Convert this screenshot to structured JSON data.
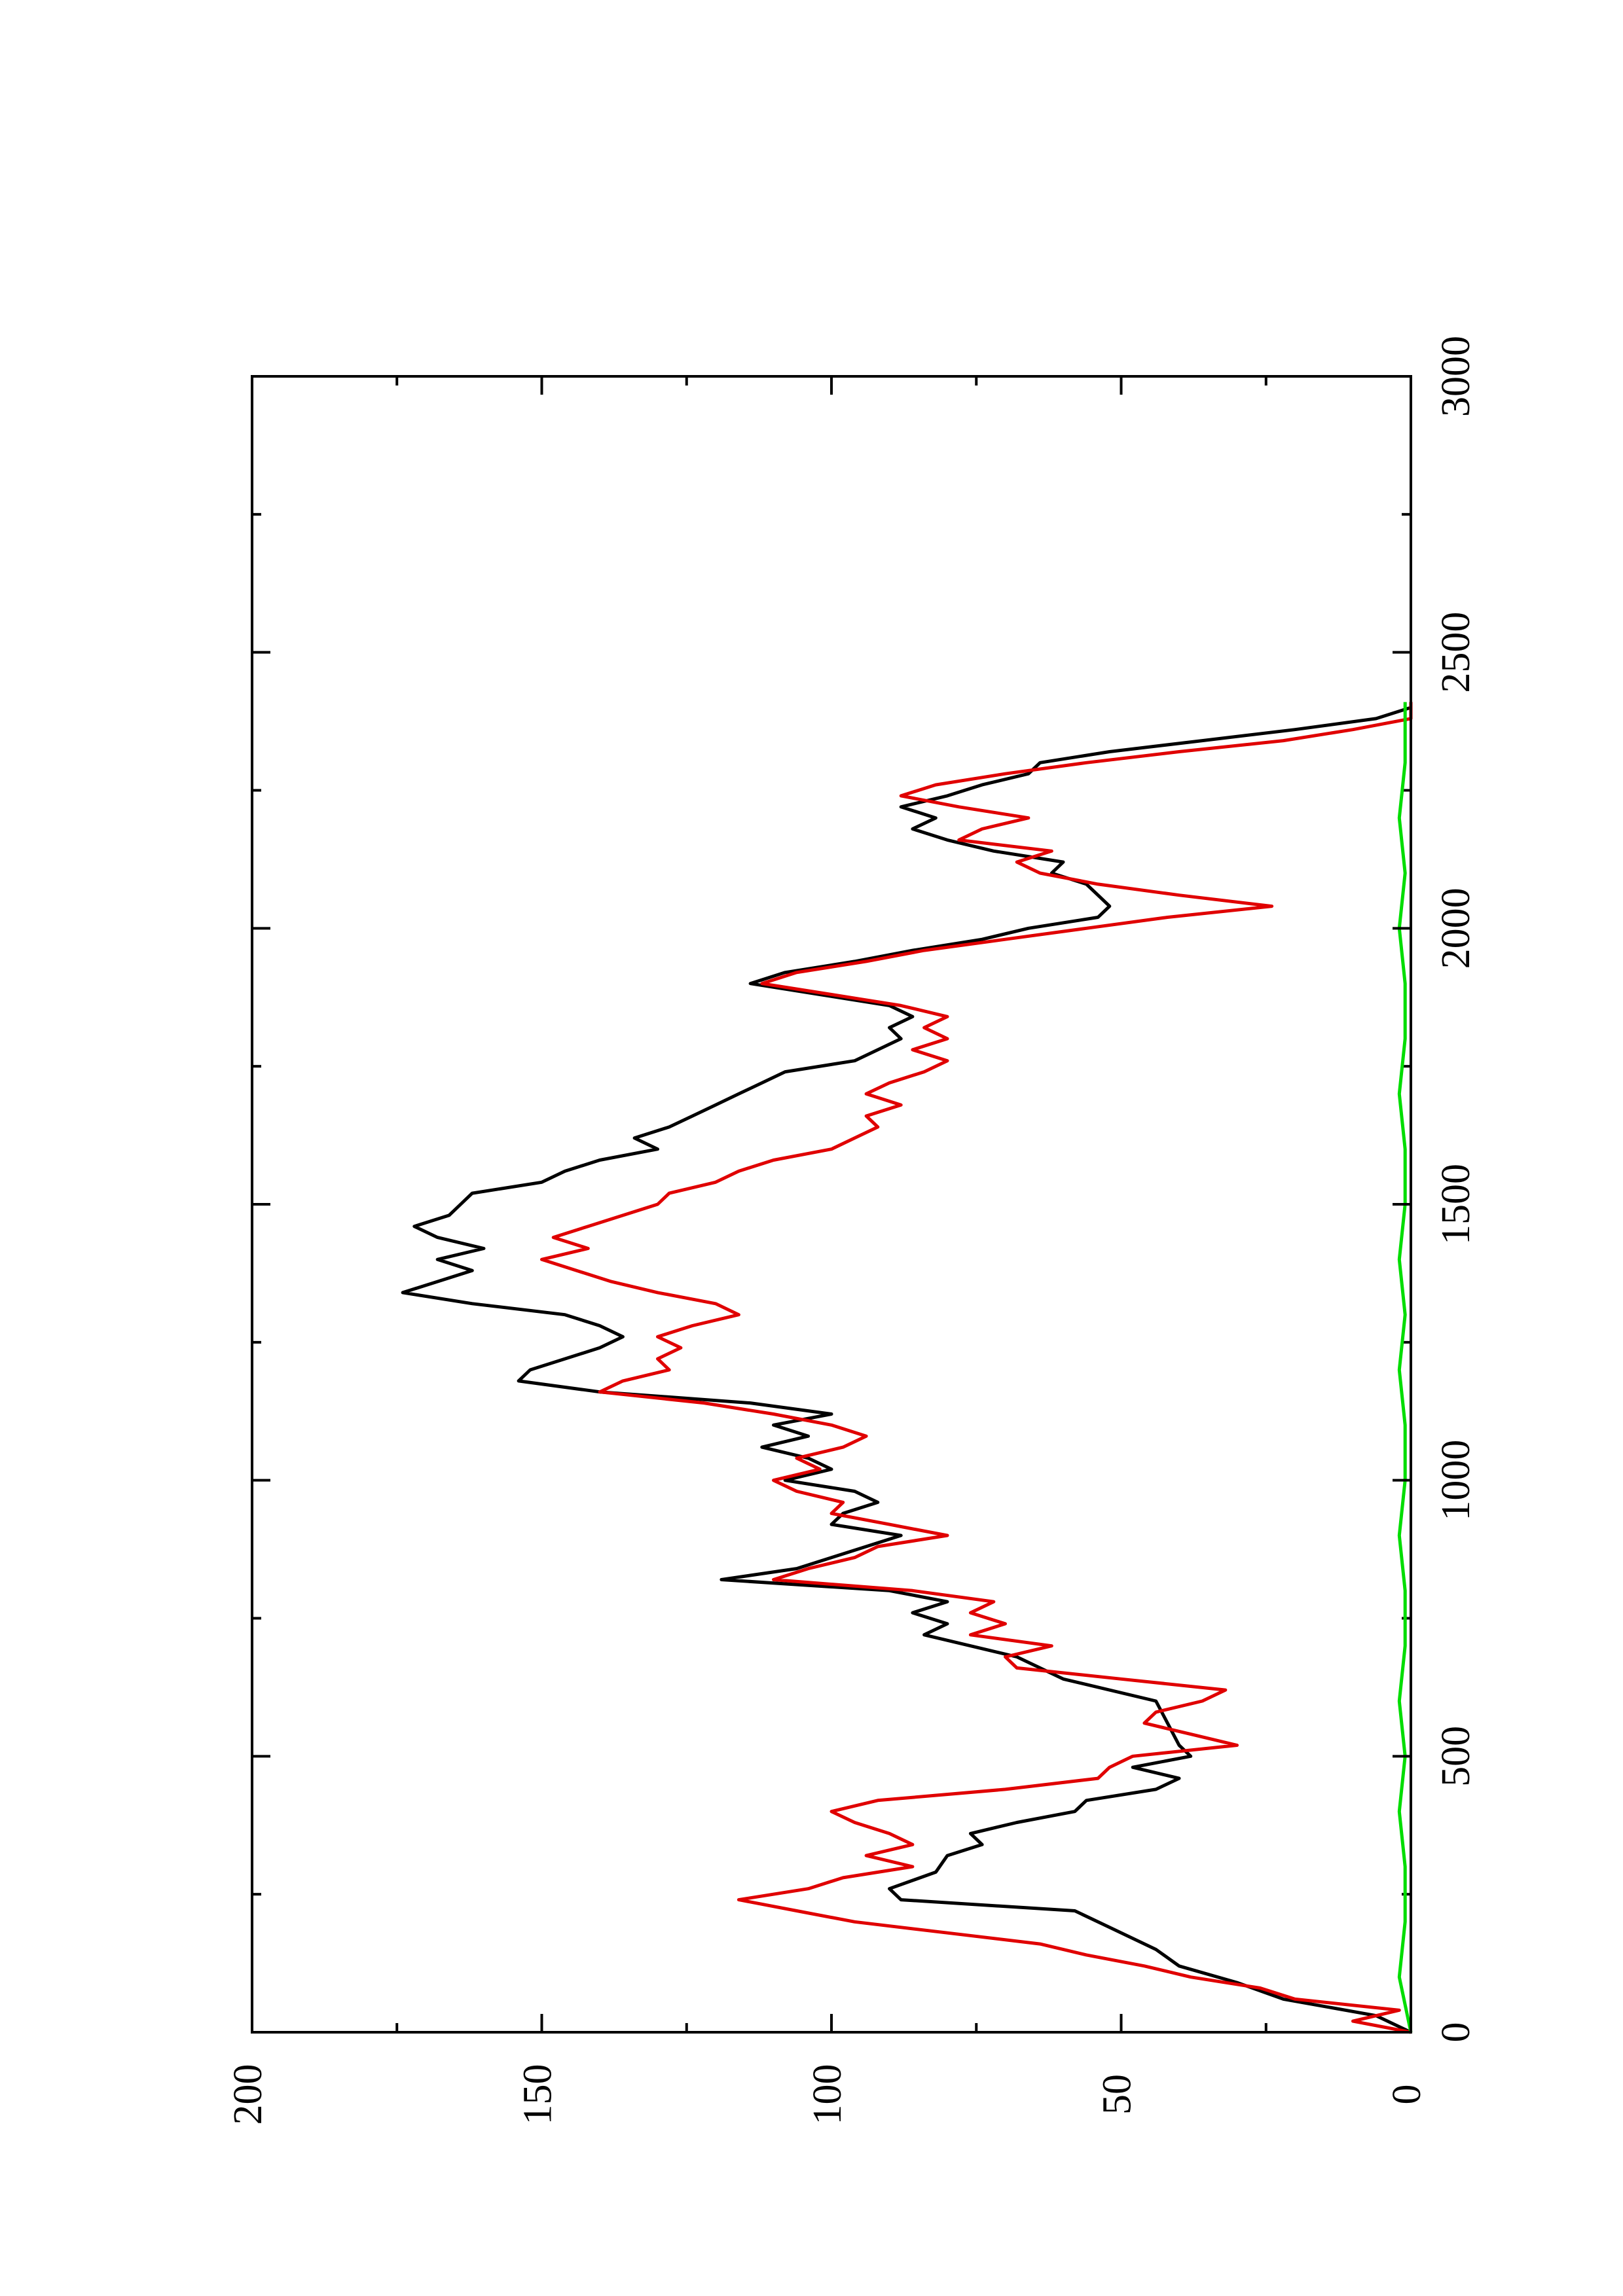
{
  "chart_data": {
    "type": "line",
    "title": "",
    "xlabel": "",
    "ylabel": "",
    "xlim": [
      0,
      3000
    ],
    "ylim": [
      0,
      200
    ],
    "x_ticks": [
      "0",
      "500",
      "1000",
      "1500",
      "2000",
      "2500",
      "3000"
    ],
    "y_ticks": [
      "0",
      "50",
      "100",
      "150",
      "200"
    ],
    "x_minor_step": 250,
    "orientation": "rotated 90° counter-clockwise (x axis runs bottom-to-top on the page)",
    "grid": false,
    "legend": "none",
    "series": [
      {
        "color": "#000000",
        "points": [
          [
            0,
            0
          ],
          [
            30,
            6
          ],
          [
            60,
            22
          ],
          [
            90,
            30
          ],
          [
            120,
            40
          ],
          [
            150,
            44
          ],
          [
            170,
            48
          ],
          [
            190,
            52
          ],
          [
            220,
            58
          ],
          [
            240,
            88
          ],
          [
            260,
            90
          ],
          [
            290,
            82
          ],
          [
            320,
            80
          ],
          [
            340,
            74
          ],
          [
            360,
            76
          ],
          [
            380,
            68
          ],
          [
            400,
            58
          ],
          [
            420,
            56
          ],
          [
            440,
            44
          ],
          [
            460,
            40
          ],
          [
            480,
            48
          ],
          [
            500,
            38
          ],
          [
            520,
            40
          ],
          [
            560,
            42
          ],
          [
            600,
            44
          ],
          [
            640,
            60
          ],
          [
            680,
            68
          ],
          [
            720,
            84
          ],
          [
            740,
            80
          ],
          [
            760,
            86
          ],
          [
            780,
            80
          ],
          [
            800,
            90
          ],
          [
            820,
            119
          ],
          [
            840,
            106
          ],
          [
            860,
            100
          ],
          [
            880,
            94
          ],
          [
            900,
            88
          ],
          [
            920,
            100
          ],
          [
            940,
            98
          ],
          [
            960,
            92
          ],
          [
            980,
            96
          ],
          [
            1000,
            108
          ],
          [
            1020,
            100
          ],
          [
            1040,
            104
          ],
          [
            1060,
            112
          ],
          [
            1080,
            104
          ],
          [
            1100,
            110
          ],
          [
            1120,
            100
          ],
          [
            1140,
            114
          ],
          [
            1160,
            140
          ],
          [
            1180,
            154
          ],
          [
            1200,
            152
          ],
          [
            1220,
            146
          ],
          [
            1240,
            140
          ],
          [
            1260,
            136
          ],
          [
            1280,
            140
          ],
          [
            1300,
            146
          ],
          [
            1320,
            162
          ],
          [
            1340,
            174
          ],
          [
            1360,
            168
          ],
          [
            1380,
            162
          ],
          [
            1400,
            168
          ],
          [
            1420,
            160
          ],
          [
            1440,
            168
          ],
          [
            1460,
            172
          ],
          [
            1480,
            166
          ],
          [
            1500,
            164
          ],
          [
            1520,
            162
          ],
          [
            1540,
            150
          ],
          [
            1560,
            146
          ],
          [
            1580,
            140
          ],
          [
            1600,
            130
          ],
          [
            1620,
            134
          ],
          [
            1640,
            128
          ],
          [
            1660,
            124
          ],
          [
            1680,
            120
          ],
          [
            1700,
            116
          ],
          [
            1720,
            112
          ],
          [
            1740,
            108
          ],
          [
            1760,
            96
          ],
          [
            1780,
            92
          ],
          [
            1800,
            88
          ],
          [
            1820,
            90
          ],
          [
            1840,
            86
          ],
          [
            1860,
            90
          ],
          [
            1880,
            102
          ],
          [
            1900,
            114
          ],
          [
            1920,
            108
          ],
          [
            1940,
            96
          ],
          [
            1960,
            86
          ],
          [
            1980,
            74
          ],
          [
            2000,
            66
          ],
          [
            2020,
            54
          ],
          [
            2040,
            52
          ],
          [
            2060,
            54
          ],
          [
            2080,
            56
          ],
          [
            2100,
            62
          ],
          [
            2120,
            60
          ],
          [
            2140,
            72
          ],
          [
            2160,
            80
          ],
          [
            2180,
            86
          ],
          [
            2200,
            82
          ],
          [
            2220,
            88
          ],
          [
            2240,
            80
          ],
          [
            2260,
            74
          ],
          [
            2280,
            66
          ],
          [
            2300,
            64
          ],
          [
            2320,
            52
          ],
          [
            2340,
            36
          ],
          [
            2360,
            20
          ],
          [
            2380,
            6
          ],
          [
            2400,
            0
          ],
          [
            2410,
            0
          ]
        ]
      },
      {
        "color": "#e00000",
        "points": [
          [
            0,
            0
          ],
          [
            20,
            10
          ],
          [
            40,
            2
          ],
          [
            60,
            20
          ],
          [
            80,
            26
          ],
          [
            100,
            38
          ],
          [
            120,
            46
          ],
          [
            140,
            56
          ],
          [
            160,
            64
          ],
          [
            180,
            80
          ],
          [
            200,
            96
          ],
          [
            220,
            106
          ],
          [
            240,
            116
          ],
          [
            260,
            104
          ],
          [
            280,
            98
          ],
          [
            300,
            86
          ],
          [
            320,
            94
          ],
          [
            340,
            86
          ],
          [
            360,
            90
          ],
          [
            380,
            96
          ],
          [
            400,
            100
          ],
          [
            420,
            92
          ],
          [
            440,
            70
          ],
          [
            460,
            54
          ],
          [
            480,
            52
          ],
          [
            500,
            48
          ],
          [
            520,
            30
          ],
          [
            540,
            38
          ],
          [
            560,
            46
          ],
          [
            580,
            44
          ],
          [
            600,
            36
          ],
          [
            620,
            32
          ],
          [
            640,
            50
          ],
          [
            660,
            68
          ],
          [
            680,
            70
          ],
          [
            700,
            62
          ],
          [
            720,
            76
          ],
          [
            740,
            70
          ],
          [
            760,
            76
          ],
          [
            780,
            72
          ],
          [
            800,
            86
          ],
          [
            820,
            110
          ],
          [
            840,
            104
          ],
          [
            860,
            96
          ],
          [
            880,
            92
          ],
          [
            900,
            80
          ],
          [
            920,
            90
          ],
          [
            940,
            100
          ],
          [
            960,
            98
          ],
          [
            980,
            106
          ],
          [
            1000,
            110
          ],
          [
            1020,
            102
          ],
          [
            1040,
            106
          ],
          [
            1060,
            98
          ],
          [
            1080,
            94
          ],
          [
            1100,
            100
          ],
          [
            1120,
            110
          ],
          [
            1140,
            122
          ],
          [
            1160,
            140
          ],
          [
            1180,
            136
          ],
          [
            1200,
            128
          ],
          [
            1220,
            130
          ],
          [
            1240,
            126
          ],
          [
            1260,
            130
          ],
          [
            1280,
            124
          ],
          [
            1300,
            116
          ],
          [
            1320,
            120
          ],
          [
            1340,
            130
          ],
          [
            1360,
            138
          ],
          [
            1380,
            144
          ],
          [
            1400,
            150
          ],
          [
            1420,
            142
          ],
          [
            1440,
            148
          ],
          [
            1460,
            142
          ],
          [
            1480,
            136
          ],
          [
            1500,
            130
          ],
          [
            1520,
            128
          ],
          [
            1540,
            120
          ],
          [
            1560,
            116
          ],
          [
            1580,
            110
          ],
          [
            1600,
            100
          ],
          [
            1620,
            96
          ],
          [
            1640,
            92
          ],
          [
            1660,
            94
          ],
          [
            1680,
            88
          ],
          [
            1700,
            94
          ],
          [
            1720,
            90
          ],
          [
            1740,
            84
          ],
          [
            1760,
            80
          ],
          [
            1780,
            86
          ],
          [
            1800,
            80
          ],
          [
            1820,
            84
          ],
          [
            1840,
            80
          ],
          [
            1860,
            88
          ],
          [
            1880,
            100
          ],
          [
            1900,
            112
          ],
          [
            1920,
            106
          ],
          [
            1940,
            94
          ],
          [
            1960,
            84
          ],
          [
            1980,
            70
          ],
          [
            2000,
            56
          ],
          [
            2020,
            42
          ],
          [
            2040,
            24
          ],
          [
            2060,
            40
          ],
          [
            2080,
            54
          ],
          [
            2100,
            64
          ],
          [
            2120,
            68
          ],
          [
            2140,
            62
          ],
          [
            2160,
            78
          ],
          [
            2180,
            74
          ],
          [
            2200,
            66
          ],
          [
            2220,
            78
          ],
          [
            2240,
            88
          ],
          [
            2260,
            82
          ],
          [
            2280,
            70
          ],
          [
            2300,
            56
          ],
          [
            2320,
            40
          ],
          [
            2340,
            22
          ],
          [
            2360,
            10
          ],
          [
            2380,
            0
          ],
          [
            2400,
            0
          ],
          [
            2410,
            0
          ]
        ]
      },
      {
        "color": "#00dd00",
        "points": [
          [
            0,
            0
          ],
          [
            100,
            2
          ],
          [
            200,
            1
          ],
          [
            300,
            1
          ],
          [
            400,
            2
          ],
          [
            500,
            1
          ],
          [
            600,
            2
          ],
          [
            700,
            1
          ],
          [
            800,
            1
          ],
          [
            900,
            2
          ],
          [
            1000,
            1
          ],
          [
            1100,
            1
          ],
          [
            1200,
            2
          ],
          [
            1300,
            1
          ],
          [
            1400,
            2
          ],
          [
            1500,
            1
          ],
          [
            1600,
            1
          ],
          [
            1700,
            2
          ],
          [
            1800,
            1
          ],
          [
            1900,
            1
          ],
          [
            2000,
            2
          ],
          [
            2100,
            1
          ],
          [
            2200,
            2
          ],
          [
            2300,
            1
          ],
          [
            2400,
            1
          ],
          [
            2410,
            1
          ]
        ]
      }
    ]
  }
}
